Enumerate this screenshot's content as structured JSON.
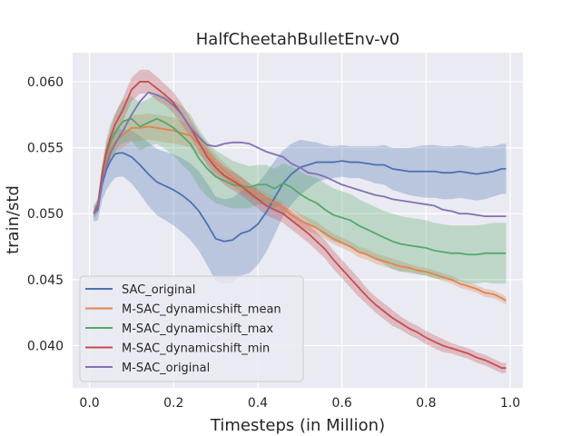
{
  "chart_data": {
    "type": "line",
    "title": "HalfCheetahBulletEnv-v0",
    "xlabel": "Timesteps (in Million)",
    "ylabel": "train/std",
    "xlim": [
      -0.04,
      1.03
    ],
    "ylim": [
      0.0368,
      0.0622
    ],
    "x_ticks": [
      0.0,
      0.2,
      0.4,
      0.6,
      0.8,
      1.0
    ],
    "x_tick_labels": [
      "0.0",
      "0.2",
      "0.4",
      "0.6",
      "0.8",
      "1.0"
    ],
    "y_ticks": [
      0.04,
      0.045,
      0.05,
      0.055,
      0.06
    ],
    "y_tick_labels": [
      "0.040",
      "0.045",
      "0.050",
      "0.055",
      "0.060"
    ],
    "grid": true,
    "legend_position": "lower-left",
    "x": [
      0.01,
      0.02,
      0.03,
      0.04,
      0.05,
      0.06,
      0.07,
      0.08,
      0.1,
      0.12,
      0.14,
      0.16,
      0.18,
      0.2,
      0.22,
      0.24,
      0.26,
      0.28,
      0.3,
      0.32,
      0.34,
      0.36,
      0.38,
      0.4,
      0.42,
      0.44,
      0.46,
      0.48,
      0.5,
      0.52,
      0.54,
      0.56,
      0.58,
      0.6,
      0.62,
      0.64,
      0.66,
      0.68,
      0.7,
      0.72,
      0.74,
      0.76,
      0.78,
      0.8,
      0.82,
      0.84,
      0.86,
      0.88,
      0.9,
      0.92,
      0.94,
      0.96,
      0.98,
      0.99
    ],
    "series": [
      {
        "name": "SAC_original",
        "color": "#4c72b0",
        "values": [
          0.05,
          0.0503,
          0.0522,
          0.0533,
          0.054,
          0.0545,
          0.0546,
          0.0546,
          0.0543,
          0.0537,
          0.053,
          0.0524,
          0.0521,
          0.0518,
          0.0514,
          0.0509,
          0.0502,
          0.0492,
          0.0481,
          0.0479,
          0.048,
          0.0485,
          0.0487,
          0.0492,
          0.0501,
          0.0512,
          0.0523,
          0.053,
          0.0535,
          0.0537,
          0.0539,
          0.0539,
          0.0539,
          0.054,
          0.0539,
          0.0539,
          0.0538,
          0.0537,
          0.0537,
          0.0534,
          0.0533,
          0.0532,
          0.0532,
          0.0532,
          0.0532,
          0.0531,
          0.0531,
          0.0532,
          0.0531,
          0.053,
          0.0531,
          0.0532,
          0.0534,
          0.0534
        ],
        "band": [
          0.0006,
          0.0008,
          0.0012,
          0.0015,
          0.0017,
          0.0018,
          0.0018,
          0.0018,
          0.002,
          0.0022,
          0.0024,
          0.0025,
          0.0026,
          0.0027,
          0.0028,
          0.0029,
          0.003,
          0.0031,
          0.0032,
          0.0032,
          0.0032,
          0.0032,
          0.0032,
          0.0031,
          0.003,
          0.0028,
          0.0025,
          0.0023,
          0.0021,
          0.0018,
          0.0015,
          0.0013,
          0.0012,
          0.0012,
          0.0012,
          0.0012,
          0.0013,
          0.0014,
          0.0015,
          0.0016,
          0.0017,
          0.0018,
          0.0019,
          0.002,
          0.002,
          0.002,
          0.002,
          0.002,
          0.002,
          0.002,
          0.002,
          0.0019,
          0.0019,
          0.0019
        ]
      },
      {
        "name": "M-SAC_dynamicshift_mean",
        "color": "#dd8452",
        "values": [
          0.05,
          0.0505,
          0.0527,
          0.054,
          0.0549,
          0.0554,
          0.0557,
          0.056,
          0.0565,
          0.0565,
          0.0566,
          0.0565,
          0.0564,
          0.0563,
          0.0561,
          0.0559,
          0.0553,
          0.0546,
          0.0538,
          0.0533,
          0.0527,
          0.0522,
          0.0518,
          0.0515,
          0.0511,
          0.0508,
          0.0504,
          0.0499,
          0.0495,
          0.0492,
          0.0489,
          0.0485,
          0.0481,
          0.0478,
          0.0475,
          0.0471,
          0.0469,
          0.0466,
          0.0464,
          0.0462,
          0.046,
          0.0459,
          0.0457,
          0.0456,
          0.0454,
          0.0452,
          0.045,
          0.0447,
          0.0445,
          0.0443,
          0.044,
          0.0439,
          0.0436,
          0.0434
        ],
        "band": [
          0.0003,
          0.0004,
          0.0006,
          0.0007,
          0.0008,
          0.0009,
          0.0009,
          0.001,
          0.001,
          0.001,
          0.001,
          0.001,
          0.001,
          0.001,
          0.0009,
          0.0009,
          0.0008,
          0.0007,
          0.0007,
          0.0006,
          0.0006,
          0.0006,
          0.0005,
          0.0005,
          0.0005,
          0.0005,
          0.0005,
          0.0005,
          0.0005,
          0.0005,
          0.0005,
          0.0004,
          0.0004,
          0.0004,
          0.0004,
          0.0004,
          0.0004,
          0.0004,
          0.0004,
          0.0004,
          0.0004,
          0.0003,
          0.0003,
          0.0003,
          0.0003,
          0.0003,
          0.0003,
          0.0003,
          0.0003,
          0.0003,
          0.0003,
          0.0003,
          0.0003,
          0.0003
        ]
      },
      {
        "name": "M-SAC_dynamicshift_max",
        "color": "#55a868",
        "values": [
          0.05,
          0.0506,
          0.0529,
          0.0545,
          0.0555,
          0.0561,
          0.0566,
          0.057,
          0.0572,
          0.0566,
          0.0569,
          0.0572,
          0.0569,
          0.0565,
          0.0559,
          0.0553,
          0.0542,
          0.0534,
          0.0528,
          0.0525,
          0.0522,
          0.0521,
          0.052,
          0.0522,
          0.0522,
          0.0519,
          0.0523,
          0.052,
          0.0515,
          0.0511,
          0.0508,
          0.0503,
          0.0499,
          0.0497,
          0.0495,
          0.0491,
          0.0488,
          0.0485,
          0.0482,
          0.0479,
          0.0477,
          0.0476,
          0.0475,
          0.0474,
          0.0472,
          0.0471,
          0.047,
          0.047,
          0.0469,
          0.0469,
          0.047,
          0.047,
          0.047,
          0.047
        ],
        "band": [
          0.0004,
          0.0006,
          0.0009,
          0.0011,
          0.0013,
          0.0014,
          0.0015,
          0.0016,
          0.0017,
          0.0018,
          0.0018,
          0.0019,
          0.002,
          0.0021,
          0.0022,
          0.0022,
          0.0022,
          0.0021,
          0.002,
          0.0019,
          0.0018,
          0.0017,
          0.0016,
          0.0015,
          0.0015,
          0.0015,
          0.0015,
          0.0016,
          0.0017,
          0.0018,
          0.0019,
          0.002,
          0.002,
          0.002,
          0.002,
          0.002,
          0.002,
          0.002,
          0.002,
          0.0021,
          0.0021,
          0.0021,
          0.0021,
          0.0021,
          0.0021,
          0.0021,
          0.0021,
          0.0021,
          0.0022,
          0.0022,
          0.0022,
          0.0023,
          0.0023,
          0.0023
        ]
      },
      {
        "name": "M-SAC_dynamicshift_min",
        "color": "#c44e52",
        "values": [
          0.05,
          0.0507,
          0.053,
          0.0547,
          0.0558,
          0.0567,
          0.0573,
          0.0579,
          0.0594,
          0.06,
          0.06,
          0.0595,
          0.059,
          0.0584,
          0.0575,
          0.0565,
          0.0554,
          0.0543,
          0.0535,
          0.0529,
          0.0525,
          0.0521,
          0.0516,
          0.0511,
          0.0506,
          0.0503,
          0.05,
          0.0495,
          0.049,
          0.0485,
          0.0479,
          0.0473,
          0.0465,
          0.0458,
          0.0451,
          0.0444,
          0.0437,
          0.0431,
          0.0426,
          0.0421,
          0.0417,
          0.0413,
          0.041,
          0.0406,
          0.0403,
          0.04,
          0.0398,
          0.0396,
          0.0394,
          0.0391,
          0.0389,
          0.0386,
          0.0383,
          0.0383
        ],
        "band": [
          0.0002,
          0.0003,
          0.0005,
          0.0006,
          0.0007,
          0.0008,
          0.0009,
          0.0009,
          0.0009,
          0.0009,
          0.0009,
          0.0009,
          0.0008,
          0.0008,
          0.0008,
          0.0007,
          0.0007,
          0.0007,
          0.0007,
          0.0007,
          0.0007,
          0.0007,
          0.0007,
          0.0007,
          0.0007,
          0.0007,
          0.0007,
          0.0007,
          0.0007,
          0.0007,
          0.0007,
          0.0007,
          0.0007,
          0.0007,
          0.0007,
          0.0007,
          0.0006,
          0.0006,
          0.0006,
          0.0006,
          0.0005,
          0.0005,
          0.0005,
          0.0005,
          0.0005,
          0.0005,
          0.0004,
          0.0004,
          0.0004,
          0.0004,
          0.0004,
          0.0004,
          0.0004,
          0.0004
        ]
      },
      {
        "name": "M-SAC_original",
        "color": "#8172b3",
        "values": [
          0.05,
          0.0504,
          0.0524,
          0.0536,
          0.0546,
          0.0552,
          0.0558,
          0.0563,
          0.0575,
          0.0585,
          0.0592,
          0.059,
          0.0587,
          0.0582,
          0.0575,
          0.0565,
          0.0558,
          0.0552,
          0.0551,
          0.0553,
          0.0554,
          0.0554,
          0.0553,
          0.055,
          0.0547,
          0.0545,
          0.0543,
          0.0538,
          0.0535,
          0.0531,
          0.053,
          0.0528,
          0.0525,
          0.0522,
          0.052,
          0.0518,
          0.0516,
          0.0514,
          0.0513,
          0.0511,
          0.051,
          0.0509,
          0.0508,
          0.0507,
          0.0506,
          0.0503,
          0.0502,
          0.05,
          0.05,
          0.0499,
          0.0498,
          0.0498,
          0.0498,
          0.0498
        ]
      }
    ]
  }
}
